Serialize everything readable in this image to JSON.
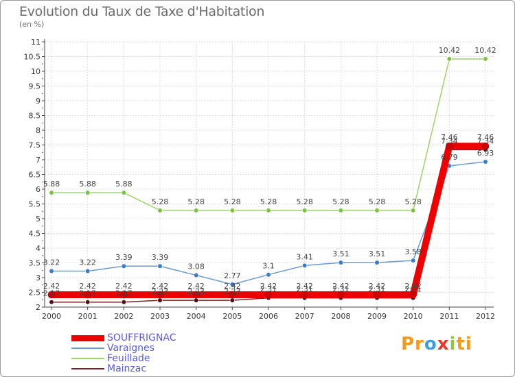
{
  "header": {
    "title": "Evolution du Taux de Taxe d'Habitation",
    "subtitle": "(en %)"
  },
  "logo": {
    "text": "Proxiti",
    "parts": [
      "Pr",
      "o",
      "x",
      "i",
      "ti"
    ]
  },
  "chart_data": {
    "type": "line",
    "x": [
      2000,
      2001,
      2002,
      2003,
      2004,
      2005,
      2006,
      2007,
      2008,
      2009,
      2010,
      2011,
      2012
    ],
    "ylim": [
      2,
      11
    ],
    "yticks": [
      2,
      2.5,
      3,
      3.5,
      4,
      4.5,
      5,
      5.5,
      6,
      6.5,
      7,
      7.5,
      8,
      8.5,
      9,
      9.5,
      10,
      10.5,
      11
    ],
    "ytick_labels": [
      "2",
      "2.5",
      "3",
      "3.5",
      "4",
      "4.5",
      "5",
      "5.5",
      "6",
      "6.5",
      "7",
      "7.5",
      "8",
      "8.5",
      "9",
      "9.5",
      "10",
      "10.5",
      "11"
    ],
    "grid": true,
    "legend": "bottom-left",
    "series": [
      {
        "name": "Mainzac",
        "color": "#7a1f2a",
        "marker": "#4a0f18",
        "values": [
          2.17,
          2.17,
          2.17,
          2.23,
          2.23,
          2.23,
          2.31,
          2.31,
          2.31,
          2.31,
          2.31,
          7.34,
          7.34
        ],
        "labels": [
          "2.17",
          "2.17",
          "2.17",
          "2.23",
          "2.23",
          "2.23",
          "2.31",
          "2.31",
          "2.31",
          "2.31",
          "2.31",
          "7.34",
          "7.34"
        ]
      },
      {
        "name": "Varaignes",
        "color": "#6b9ad0",
        "marker": "#3a7cc8",
        "values": [
          3.22,
          3.22,
          3.39,
          3.39,
          3.08,
          2.77,
          3.1,
          3.41,
          3.51,
          3.51,
          3.58,
          6.79,
          6.93
        ],
        "labels": [
          "3.22",
          "3.22",
          "3.39",
          "3.39",
          "3.08",
          "2.77",
          "3.1",
          "3.41",
          "3.51",
          "3.51",
          "3.58",
          "6.79",
          "6.93"
        ]
      },
      {
        "name": "Feuillade",
        "color": "#9cd36a",
        "marker": "#7cc242",
        "values": [
          5.88,
          5.88,
          5.88,
          5.28,
          5.28,
          5.28,
          5.28,
          5.28,
          5.28,
          5.28,
          5.28,
          10.42,
          10.42
        ],
        "labels": [
          "5.88",
          "5.88",
          "5.88",
          "5.28",
          "5.28",
          "5.28",
          "5.28",
          "5.28",
          "5.28",
          "5.28",
          "5.28",
          "10.42",
          "10.42"
        ]
      },
      {
        "name": "SOUFFRIGNAC",
        "color": "#ee0000",
        "marker": "#cc0000",
        "values": [
          2.42,
          2.42,
          2.42,
          2.42,
          2.42,
          2.42,
          2.42,
          2.42,
          2.42,
          2.42,
          2.42,
          7.46,
          7.46
        ],
        "labels": [
          "2.42",
          "2.42",
          "2.42",
          "2.42",
          "2.42",
          "2.42",
          "2.42",
          "2.42",
          "2.42",
          "2.42",
          "2.42",
          "7.46",
          "7.46"
        ]
      }
    ],
    "legend_order": [
      "SOUFFRIGNAC",
      "Varaignes",
      "Feuillade",
      "Mainzac"
    ]
  }
}
